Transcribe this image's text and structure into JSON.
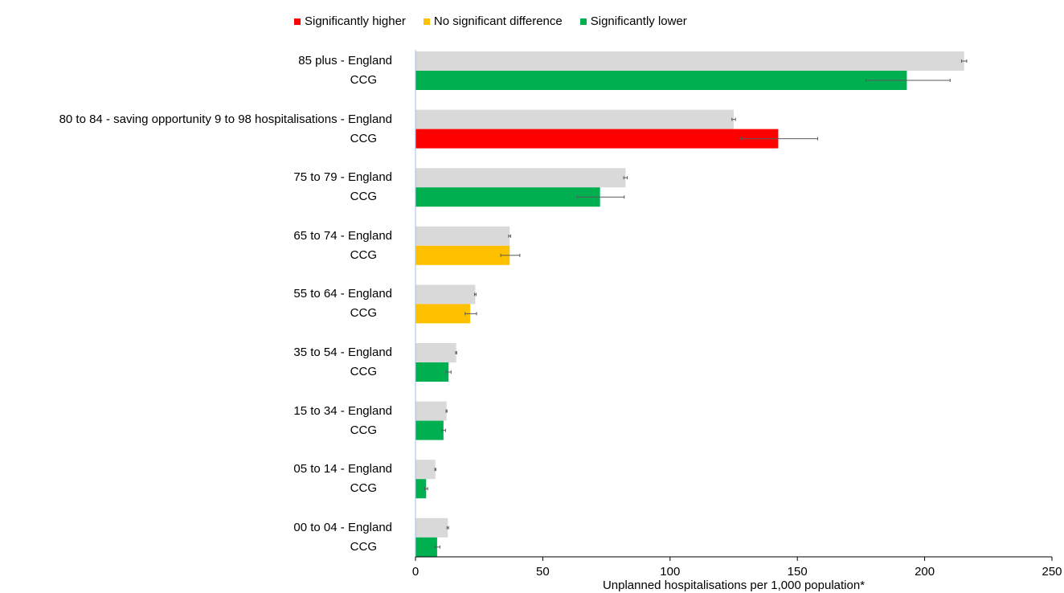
{
  "chart_data": {
    "type": "bar",
    "orientation": "horizontal",
    "xlabel": "Unplanned hospitalisations per 1,000 population*",
    "xlim": [
      0,
      250
    ],
    "xticks": [
      0,
      50,
      100,
      150,
      200,
      250
    ],
    "legend": {
      "position": "top",
      "entries": [
        {
          "label": "Significantly higher",
          "color": "#ff0000"
        },
        {
          "label": "No significant difference",
          "color": "#ffc000"
        },
        {
          "label": "Significantly lower",
          "color": "#00b050"
        }
      ]
    },
    "england_color": "#d9d9d9",
    "categories": [
      {
        "label": "85 plus  - England",
        "ccg_label": "CCG",
        "england": 215.5,
        "england_ci": [
          214.5,
          216.5
        ],
        "ccg": 193,
        "ccg_ci": [
          177,
          210
        ],
        "status": "lower"
      },
      {
        "label": "80 to 84  - saving opportunity 9 to 98 hospitalisations - England",
        "ccg_label": "CCG",
        "england": 125,
        "england_ci": [
          124.3,
          125.7
        ],
        "ccg": 142.5,
        "ccg_ci": [
          128,
          158
        ],
        "status": "higher"
      },
      {
        "label": "75 to 79  - England",
        "ccg_label": "CCG",
        "england": 82.5,
        "england_ci": [
          81.8,
          83.2
        ],
        "ccg": 72.5,
        "ccg_ci": [
          63.5,
          82
        ],
        "status": "lower"
      },
      {
        "label": "65 to 74  - England",
        "ccg_label": "CCG",
        "england": 37,
        "england_ci": [
          36.6,
          37.4
        ],
        "ccg": 37,
        "ccg_ci": [
          33.5,
          41
        ],
        "status": "nosig"
      },
      {
        "label": "55 to 64  - England",
        "ccg_label": "CCG",
        "england": 23.5,
        "england_ci": [
          23.2,
          23.8
        ],
        "ccg": 21.5,
        "ccg_ci": [
          19.5,
          24
        ],
        "status": "nosig"
      },
      {
        "label": "35 to 54  - England",
        "ccg_label": "CCG",
        "england": 16,
        "england_ci": [
          15.8,
          16.2
        ],
        "ccg": 13,
        "ccg_ci": [
          12,
          14
        ],
        "status": "lower"
      },
      {
        "label": "15 to 34  - England",
        "ccg_label": "CCG",
        "england": 12.2,
        "england_ci": [
          12,
          12.4
        ],
        "ccg": 11,
        "ccg_ci": [
          10.2,
          11.8
        ],
        "status": "lower"
      },
      {
        "label": "05 to 14  - England",
        "ccg_label": "CCG",
        "england": 7.8,
        "england_ci": [
          7.6,
          8.0
        ],
        "ccg": 4.2,
        "ccg_ci": [
          3.6,
          4.8
        ],
        "status": "lower"
      },
      {
        "label": "00 to 04  - England",
        "ccg_label": "CCG",
        "england": 12.7,
        "england_ci": [
          12.4,
          13.0
        ],
        "ccg": 8.5,
        "ccg_ci": [
          7.6,
          9.6
        ],
        "status": "lower"
      }
    ]
  }
}
